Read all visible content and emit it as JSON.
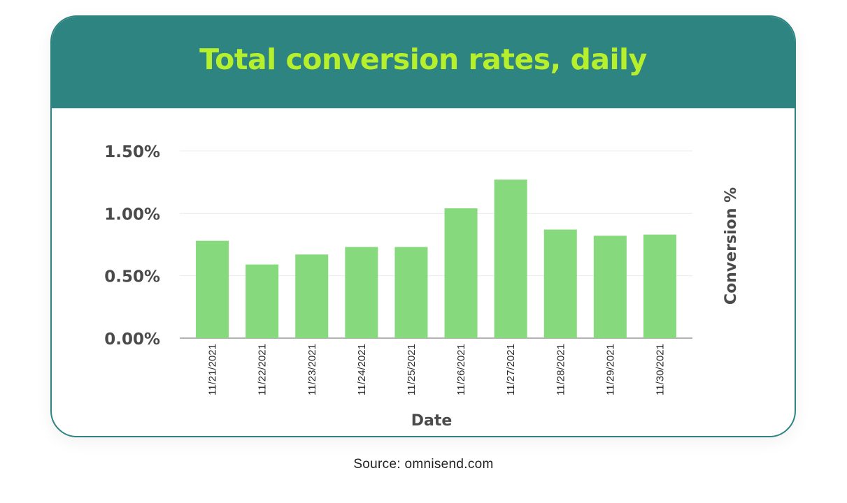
{
  "chart_data": {
    "type": "bar",
    "title": "Total conversion rates, daily",
    "xlabel": "Date",
    "ylabel": "Conversion %",
    "categories": [
      "11/21/2021",
      "11/22/2021",
      "11/23/2021",
      "11/24/2021",
      "11/25/2021",
      "11/26/2021",
      "11/27/2021",
      "11/28/2021",
      "11/29/2021",
      "11/30/2021"
    ],
    "values": [
      0.78,
      0.59,
      0.67,
      0.73,
      0.73,
      1.04,
      1.27,
      0.87,
      0.82,
      0.83
    ],
    "value_unit": "%",
    "ylim": [
      0,
      1.5
    ],
    "yticks": [
      0,
      0.5,
      1.0,
      1.5
    ],
    "ytick_labels": [
      "0.00%",
      "0.50%",
      "1.00%",
      "1.50%"
    ],
    "grid": true,
    "legend": "none",
    "bar_color": "#86d97c"
  },
  "source": "Source: omnisend.com",
  "colors": {
    "header": "#2e8480",
    "title": "#b6f02d",
    "bar": "#86d97c",
    "axis_text": "#4a4a4a"
  }
}
